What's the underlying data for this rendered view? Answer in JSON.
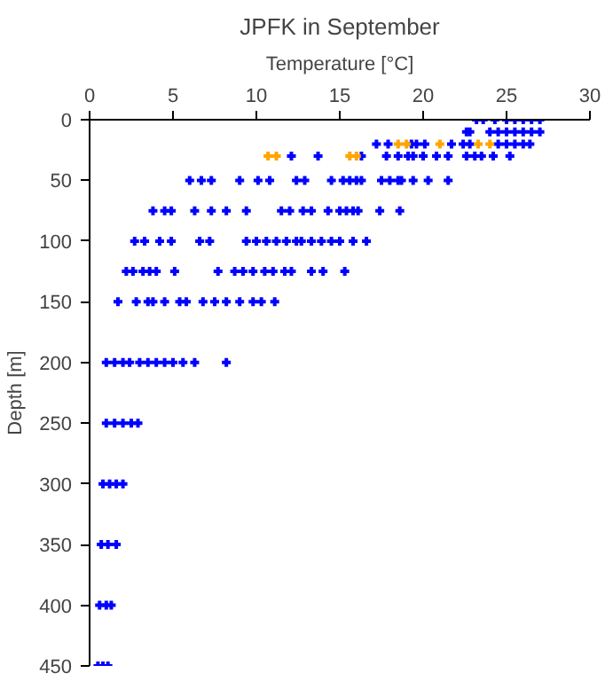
{
  "chart_data": {
    "type": "scatter",
    "title": "JPFK in September",
    "xlabel": "Temperature [°C]",
    "ylabel": "Depth [m]",
    "xlim": [
      0,
      30
    ],
    "xticks": [
      0,
      5,
      10,
      15,
      20,
      25,
      30
    ],
    "ylim": [
      450,
      0
    ],
    "yticks": [
      0,
      50,
      100,
      150,
      200,
      250,
      300,
      350,
      400,
      450
    ],
    "grid": false,
    "marker": "cross",
    "series": [
      {
        "color": "#0000ff",
        "x": [
          23.2,
          23.6,
          24.3,
          25,
          25.5,
          26,
          26.5,
          27,
          22.6,
          22.8,
          24,
          24.5,
          25,
          25.5,
          26,
          26.5,
          27,
          17.2,
          17.9,
          19.3,
          19.6,
          20.1,
          21.7,
          22.4,
          22.8,
          24.5,
          25.0,
          25.5,
          26.0,
          26.4,
          12.1,
          13.7,
          16.3,
          17.8,
          18.5,
          19.1,
          19.4,
          20.0,
          20.8,
          21.5,
          22.6,
          23.1,
          23.5,
          24.2,
          25.2,
          6.0,
          6.7,
          7.3,
          9.0,
          10.1,
          10.8,
          12.4,
          12.9,
          14.5,
          15.2,
          15.6,
          16.0,
          16.3,
          17.5,
          18.0,
          18.5,
          18.7,
          19.4,
          20.3,
          21.5,
          3.8,
          4.5,
          4.9,
          6.3,
          7.3,
          8.2,
          9.4,
          11.5,
          12.0,
          12.8,
          13.3,
          14.3,
          15.0,
          15.4,
          15.8,
          16.1,
          17.4,
          18.6,
          2.7,
          3.3,
          4.2,
          4.9,
          6.6,
          7.2,
          9.4,
          10.0,
          10.6,
          11.2,
          11.8,
          12.4,
          12.7,
          13.3,
          13.9,
          14.5,
          15.0,
          15.8,
          16.6,
          2.2,
          2.6,
          3.2,
          3.6,
          4.0,
          5.1,
          7.7,
          8.7,
          9.2,
          9.8,
          10.5,
          11.0,
          11.7,
          12.1,
          13.3,
          14.0,
          15.3,
          1.7,
          2.8,
          3.5,
          3.8,
          4.5,
          5.4,
          5.8,
          6.8,
          7.5,
          8.2,
          9.0,
          9.8,
          10.3,
          11.1,
          1.0,
          1.5,
          2.0,
          2.4,
          3.0,
          3.5,
          4.0,
          4.5,
          5.0,
          5.6,
          6.3,
          8.2,
          1.0,
          1.5,
          2.0,
          2.5,
          2.9,
          0.8,
          1.2,
          1.6,
          2.0,
          0.7,
          1.1,
          1.6,
          0.6,
          1.0,
          1.3,
          0.5,
          0.8,
          1.1
        ],
        "values": [
          0,
          0,
          0,
          0,
          0,
          0,
          0,
          0,
          10,
          10,
          10,
          10,
          10,
          10,
          10,
          10,
          10,
          20,
          20,
          20,
          20,
          20,
          20,
          20,
          20,
          20,
          20,
          20,
          20,
          20,
          30,
          30,
          30,
          30,
          30,
          30,
          30,
          30,
          30,
          30,
          30,
          30,
          30,
          30,
          30,
          50,
          50,
          50,
          50,
          50,
          50,
          50,
          50,
          50,
          50,
          50,
          50,
          50,
          50,
          50,
          50,
          50,
          50,
          50,
          50,
          75,
          75,
          75,
          75,
          75,
          75,
          75,
          75,
          75,
          75,
          75,
          75,
          75,
          75,
          75,
          75,
          75,
          75,
          100,
          100,
          100,
          100,
          100,
          100,
          100,
          100,
          100,
          100,
          100,
          100,
          100,
          100,
          100,
          100,
          100,
          100,
          100,
          125,
          125,
          125,
          125,
          125,
          125,
          125,
          125,
          125,
          125,
          125,
          125,
          125,
          125,
          125,
          125,
          125,
          150,
          150,
          150,
          150,
          150,
          150,
          150,
          150,
          150,
          150,
          150,
          150,
          150,
          150,
          200,
          200,
          200,
          200,
          200,
          200,
          200,
          200,
          200,
          200,
          200,
          200,
          250,
          250,
          250,
          250,
          250,
          300,
          300,
          300,
          300,
          350,
          350,
          350,
          400,
          400,
          400,
          450,
          450,
          450
        ]
      },
      {
        "color": "#ffa500",
        "x": [
          18.5,
          19.0,
          21.0,
          23.3,
          24.0,
          10.7,
          11.2,
          15.6,
          16.0
        ],
        "values": [
          20,
          20,
          20,
          20,
          20,
          30,
          30,
          30,
          30
        ]
      }
    ]
  }
}
